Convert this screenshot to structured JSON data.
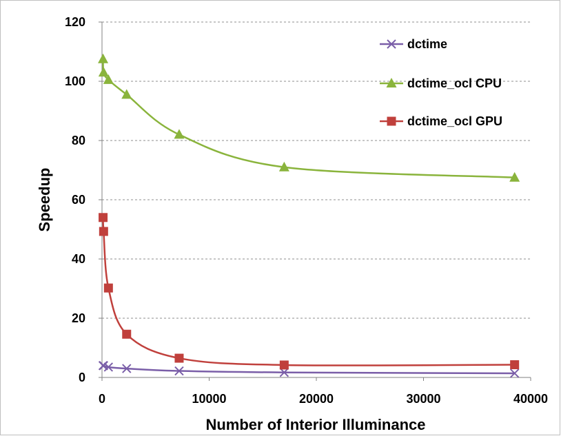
{
  "chart_data": {
    "type": "line",
    "title": "",
    "xlabel": "Number of Interior Illuminance",
    "ylabel": "Speedup",
    "xlim": [
      0,
      40000
    ],
    "ylim": [
      0,
      120
    ],
    "xticks": [
      0,
      10000,
      20000,
      30000,
      40000
    ],
    "yticks": [
      0,
      20,
      40,
      60,
      80,
      100,
      120
    ],
    "grid": "horizontal dashed",
    "legend_position": "top-right",
    "series": [
      {
        "name": "dctime",
        "color": "#7a5ea8",
        "marker": "x",
        "x": [
          100,
          150,
          600,
          2300,
          7200,
          17000,
          38500
        ],
        "y": [
          4,
          4,
          3.5,
          3,
          2.2,
          1.7,
          1.4
        ]
      },
      {
        "name": "dctime_ocl CPU",
        "color": "#8ab43c",
        "marker": "triangle",
        "x": [
          100,
          150,
          600,
          2300,
          7200,
          17000,
          38500
        ],
        "y": [
          107.5,
          103,
          100.5,
          95.5,
          82,
          71,
          67.5
        ]
      },
      {
        "name": "dctime_ocl GPU",
        "color": "#c0403c",
        "marker": "square",
        "x": [
          100,
          150,
          600,
          2300,
          7200,
          17000,
          38500
        ],
        "y": [
          54,
          49.3,
          30.2,
          14.6,
          6.5,
          4.2,
          4.3
        ]
      }
    ]
  }
}
